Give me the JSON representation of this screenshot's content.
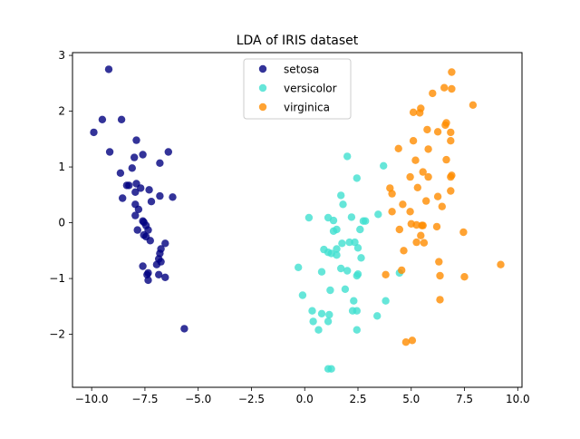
{
  "chart_data": {
    "type": "scatter",
    "title": "LDA of IRIS dataset",
    "xlabel": "",
    "ylabel": "",
    "xlim": [
      -10.9,
      10.2
    ],
    "ylim": [
      -2.95,
      3.05
    ],
    "xticks": [
      -10.0,
      -7.5,
      -5.0,
      -2.5,
      0.0,
      2.5,
      5.0,
      7.5,
      10.0
    ],
    "xtick_labels": [
      "−10.0",
      "−7.5",
      "−5.0",
      "−2.5",
      "0.0",
      "2.5",
      "5.0",
      "7.5",
      "10.0"
    ],
    "yticks": [
      -2,
      -1,
      0,
      1,
      2,
      3
    ],
    "ytick_labels": [
      "−2",
      "−1",
      "0",
      "1",
      "2",
      "3"
    ],
    "grid": false,
    "legend_position": "upper-center",
    "series": [
      {
        "name": "setosa",
        "color": "#000080",
        "points": [
          [
            -9.2,
            2.75
          ],
          [
            -9.5,
            1.85
          ],
          [
            -8.6,
            1.85
          ],
          [
            -9.9,
            1.62
          ],
          [
            -9.15,
            1.27
          ],
          [
            -7.9,
            1.48
          ],
          [
            -6.4,
            1.27
          ],
          [
            -7.6,
            1.22
          ],
          [
            -8.0,
            1.17
          ],
          [
            -6.8,
            1.07
          ],
          [
            -8.1,
            0.98
          ],
          [
            -8.65,
            0.89
          ],
          [
            -8.25,
            0.67
          ],
          [
            -8.35,
            0.67
          ],
          [
            -7.9,
            0.7
          ],
          [
            -7.7,
            0.62
          ],
          [
            -7.95,
            0.55
          ],
          [
            -7.3,
            0.59
          ],
          [
            -8.55,
            0.44
          ],
          [
            -7.2,
            0.38
          ],
          [
            -6.8,
            0.48
          ],
          [
            -6.2,
            0.46
          ],
          [
            -7.95,
            0.33
          ],
          [
            -7.8,
            0.24
          ],
          [
            -7.95,
            0.13
          ],
          [
            -7.6,
            0.03
          ],
          [
            -7.55,
            0.01
          ],
          [
            -7.45,
            -0.05
          ],
          [
            -7.85,
            -0.13
          ],
          [
            -7.35,
            -0.13
          ],
          [
            -7.55,
            -0.22
          ],
          [
            -7.45,
            -0.25
          ],
          [
            -7.25,
            -0.32
          ],
          [
            -6.55,
            -0.37
          ],
          [
            -6.75,
            -0.47
          ],
          [
            -6.8,
            -0.55
          ],
          [
            -6.85,
            -0.65
          ],
          [
            -6.75,
            -0.7
          ],
          [
            -6.95,
            -0.75
          ],
          [
            -7.6,
            -0.78
          ],
          [
            -7.35,
            -0.9
          ],
          [
            -7.4,
            -0.93
          ],
          [
            -6.85,
            -0.93
          ],
          [
            -6.55,
            -0.98
          ],
          [
            -7.35,
            -1.03
          ],
          [
            -5.65,
            -1.9
          ]
        ]
      },
      {
        "name": "versicolor",
        "color": "#40E0D0",
        "points": [
          [
            2.0,
            1.19
          ],
          [
            3.7,
            1.02
          ],
          [
            2.45,
            0.8
          ],
          [
            1.7,
            0.49
          ],
          [
            1.8,
            0.33
          ],
          [
            2.2,
            0.1
          ],
          [
            3.45,
            0.15
          ],
          [
            0.2,
            0.09
          ],
          [
            1.1,
            0.09
          ],
          [
            1.35,
            0.04
          ],
          [
            2.75,
            0.03
          ],
          [
            2.85,
            0.03
          ],
          [
            1.5,
            -0.12
          ],
          [
            1.35,
            -0.15
          ],
          [
            2.6,
            -0.12
          ],
          [
            2.1,
            -0.35
          ],
          [
            2.35,
            -0.35
          ],
          [
            1.75,
            -0.37
          ],
          [
            2.5,
            -0.45
          ],
          [
            1.5,
            -0.47
          ],
          [
            0.9,
            -0.48
          ],
          [
            1.1,
            -0.53
          ],
          [
            1.25,
            -0.55
          ],
          [
            1.5,
            -0.58
          ],
          [
            2.65,
            -0.63
          ],
          [
            -0.3,
            -0.8
          ],
          [
            1.7,
            -0.82
          ],
          [
            2.0,
            -0.86
          ],
          [
            0.8,
            -0.88
          ],
          [
            2.5,
            -0.92
          ],
          [
            2.45,
            -0.95
          ],
          [
            4.45,
            -0.9
          ],
          [
            -0.1,
            -1.3
          ],
          [
            1.2,
            -1.21
          ],
          [
            1.9,
            -1.19
          ],
          [
            2.3,
            -1.4
          ],
          [
            3.8,
            -1.4
          ],
          [
            0.35,
            -1.58
          ],
          [
            2.25,
            -1.58
          ],
          [
            2.45,
            -1.58
          ],
          [
            0.8,
            -1.63
          ],
          [
            1.15,
            -1.65
          ],
          [
            3.4,
            -1.67
          ],
          [
            0.4,
            -1.77
          ],
          [
            1.1,
            -1.77
          ],
          [
            0.65,
            -1.92
          ],
          [
            2.45,
            -1.92
          ],
          [
            1.1,
            -2.62
          ],
          [
            1.25,
            -2.62
          ]
        ]
      },
      {
        "name": "virginica",
        "color": "#FF8C00",
        "points": [
          [
            6.9,
            2.7
          ],
          [
            6.55,
            2.42
          ],
          [
            6.9,
            2.4
          ],
          [
            5.45,
            2.05
          ],
          [
            5.1,
            1.98
          ],
          [
            5.4,
            1.97
          ],
          [
            7.9,
            2.11
          ],
          [
            6.0,
            2.32
          ],
          [
            6.6,
            1.75
          ],
          [
            6.65,
            1.79
          ],
          [
            5.75,
            1.67
          ],
          [
            6.25,
            1.63
          ],
          [
            6.85,
            1.62
          ],
          [
            5.1,
            1.47
          ],
          [
            6.85,
            1.47
          ],
          [
            4.4,
            1.33
          ],
          [
            5.8,
            1.32
          ],
          [
            5.2,
            1.12
          ],
          [
            6.65,
            1.13
          ],
          [
            5.55,
            0.91
          ],
          [
            4.95,
            0.82
          ],
          [
            5.8,
            0.82
          ],
          [
            6.9,
            0.85
          ],
          [
            6.85,
            0.82
          ],
          [
            5.3,
            0.63
          ],
          [
            4.0,
            0.62
          ],
          [
            4.1,
            0.52
          ],
          [
            6.25,
            0.47
          ],
          [
            6.85,
            0.57
          ],
          [
            4.6,
            0.33
          ],
          [
            5.7,
            0.39
          ],
          [
            6.45,
            0.29
          ],
          [
            4.1,
            0.2
          ],
          [
            4.95,
            0.2
          ],
          [
            5.0,
            -0.02
          ],
          [
            5.25,
            -0.04
          ],
          [
            5.55,
            -0.05
          ],
          [
            5.5,
            -0.05
          ],
          [
            6.2,
            -0.07
          ],
          [
            4.45,
            -0.12
          ],
          [
            5.45,
            -0.23
          ],
          [
            7.45,
            -0.17
          ],
          [
            5.25,
            -0.35
          ],
          [
            5.6,
            -0.36
          ],
          [
            4.65,
            -0.5
          ],
          [
            6.3,
            -0.7
          ],
          [
            9.2,
            -0.75
          ],
          [
            4.55,
            -0.85
          ],
          [
            3.8,
            -0.93
          ],
          [
            6.35,
            -0.95
          ],
          [
            7.5,
            -0.97
          ],
          [
            6.35,
            -1.38
          ],
          [
            4.75,
            -2.14
          ],
          [
            5.05,
            -2.11
          ]
        ]
      }
    ]
  }
}
